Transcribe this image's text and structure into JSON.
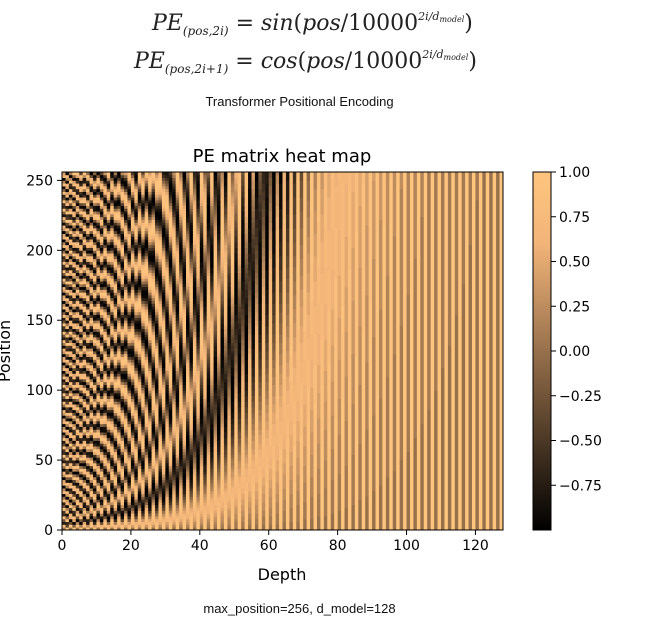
{
  "equations": {
    "even": {
      "lhs_main": "PE",
      "lhs_sub": "(pos,2i)",
      "fn": "sin",
      "base": "10000",
      "exp": "2i/d",
      "exp_sub": "model"
    },
    "odd": {
      "lhs_main": "PE",
      "lhs_sub": "(pos,2i+1)",
      "fn": "cos",
      "base": "10000",
      "exp": "2i/d",
      "exp_sub": "model"
    }
  },
  "captions": {
    "top": "Transformer Positional Encoding",
    "bottom": "max_position=256, d_model=128"
  },
  "chart_data": {
    "type": "heatmap",
    "title": "PE matrix heat map",
    "xlabel": "Depth",
    "ylabel": "Position",
    "x_range": [
      0,
      128
    ],
    "y_range": [
      0,
      256
    ],
    "x_ticks": [
      0,
      20,
      40,
      60,
      80,
      100,
      120
    ],
    "y_ticks": [
      0,
      50,
      100,
      150,
      200,
      250
    ],
    "max_position": 256,
    "d_model": 128,
    "formula": "PE(pos,2i)=sin(pos/10000^(2i/d_model)), PE(pos,2i+1)=cos(pos/10000^(2i/d_model))",
    "colormap": "copper",
    "colormap_stops": [
      "#000000",
      "#f2b479",
      "#ffc57e"
    ],
    "colorbar_range": [
      -1.0,
      1.0
    ],
    "colorbar_ticks": [
      "1.00",
      "0.75",
      "0.50",
      "0.25",
      "0.00",
      "−0.25",
      "−0.50",
      "−0.75"
    ],
    "colorbar_tick_values": [
      1.0,
      0.75,
      0.5,
      0.25,
      0.0,
      -0.25,
      -0.5,
      -0.75
    ]
  }
}
